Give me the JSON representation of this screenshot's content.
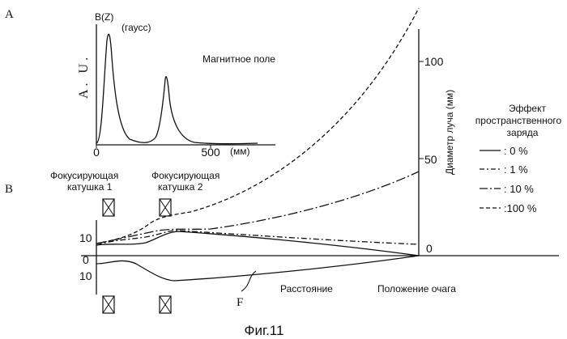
{
  "panel_a": {
    "panel_label": "A",
    "y_axis_label": "B(Z)",
    "y_unit": "(гаусс)",
    "y_scale": "A. U.",
    "x_ticks": [
      "0",
      "500"
    ],
    "x_unit": "(мм)",
    "curve_label": "Магнитное поле"
  },
  "panel_b": {
    "panel_label": "B",
    "coil_1_label_line1": "Фокусирующая",
    "coil_1_label_line2": "катушка 1",
    "coil_2_label_line1": "Фокусирующая",
    "coil_2_label_line2": "катушка 2",
    "y_ticks_left": [
      "10",
      "0",
      "10"
    ],
    "right_axis_ticks": [
      "100",
      "50",
      "0"
    ],
    "right_axis_label": "Диаметр луча (мм)",
    "x_label_distance": "Расстояние",
    "x_label_focus": "Положение очага",
    "curve_marker": "F"
  },
  "legend": {
    "title_line1": "Эффект",
    "title_line2": "пространственного",
    "title_line3": "заряда",
    "items": [
      {
        "label": ":   0 %",
        "style": "solid"
      },
      {
        "label": ":   1 %",
        "style": "dash-dot"
      },
      {
        "label": ":  10 %",
        "style": "long-dash-dot"
      },
      {
        "label": ":100 %",
        "style": "dashed"
      }
    ]
  },
  "caption": "Фиг.11"
}
